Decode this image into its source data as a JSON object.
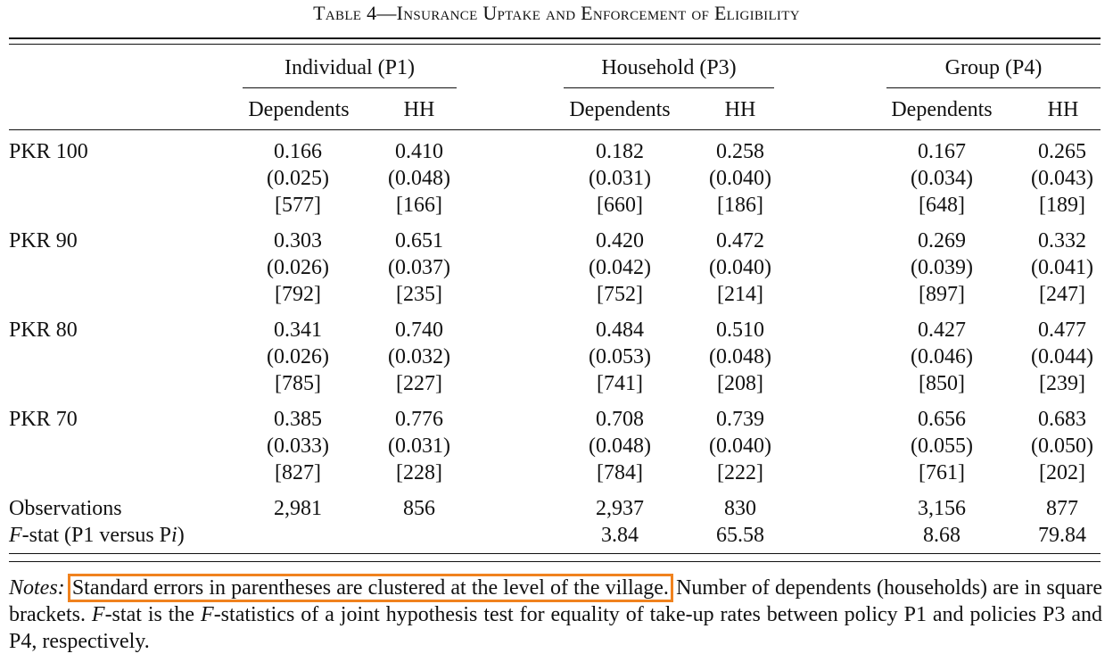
{
  "title": "Table 4—Insurance Uptake and Enforcement of Eligibility",
  "groups": [
    "Individual (P1)",
    "Household (P3)",
    "Group (P4)"
  ],
  "subheaders": [
    "Dependents",
    "HH"
  ],
  "rows": [
    {
      "label": "PKR 100",
      "est": [
        "0.166",
        "0.410",
        "0.182",
        "0.258",
        "0.167",
        "0.265"
      ],
      "se": [
        "(0.025)",
        "(0.048)",
        "(0.031)",
        "(0.040)",
        "(0.034)",
        "(0.043)"
      ],
      "n": [
        "[577]",
        "[166]",
        "[660]",
        "[186]",
        "[648]",
        "[189]"
      ]
    },
    {
      "label": "PKR 90",
      "est": [
        "0.303",
        "0.651",
        "0.420",
        "0.472",
        "0.269",
        "0.332"
      ],
      "se": [
        "(0.026)",
        "(0.037)",
        "(0.042)",
        "(0.040)",
        "(0.039)",
        "(0.041)"
      ],
      "n": [
        "[792]",
        "[235]",
        "[752]",
        "[214]",
        "[897]",
        "[247]"
      ]
    },
    {
      "label": "PKR 80",
      "est": [
        "0.341",
        "0.740",
        "0.484",
        "0.510",
        "0.427",
        "0.477"
      ],
      "se": [
        "(0.026)",
        "(0.032)",
        "(0.053)",
        "(0.048)",
        "(0.046)",
        "(0.044)"
      ],
      "n": [
        "[785]",
        "[227]",
        "[741]",
        "[208]",
        "[850]",
        "[239]"
      ]
    },
    {
      "label": "PKR 70",
      "est": [
        "0.385",
        "0.776",
        "0.708",
        "0.739",
        "0.656",
        "0.683"
      ],
      "se": [
        "(0.033)",
        "(0.031)",
        "(0.048)",
        "(0.040)",
        "(0.055)",
        "(0.050)"
      ],
      "n": [
        "[827]",
        "[228]",
        "[784]",
        "[222]",
        "[761]",
        "[202]"
      ]
    }
  ],
  "observations": {
    "label": "Observations",
    "values": [
      "2,981",
      "856",
      "2,937",
      "830",
      "3,156",
      "877"
    ]
  },
  "fstat": {
    "label_prefix": "F",
    "label_rest": "-stat (P1 versus P",
    "label_i": "i",
    "label_close": ")",
    "values": [
      "",
      "",
      "3.84",
      "65.58",
      "8.68",
      "79.84"
    ]
  },
  "notes": {
    "label": "Notes:",
    "highlighted": "Standard errors in parentheses are clustered at the level of the village.",
    "rest_1": " Number of dependents (households) are in square brackets. ",
    "f1": "F",
    "rest_2": "-stat is the ",
    "f2": "F",
    "rest_3": "-statistics of a joint hypothesis test for equality of take-up rates between policy P1 and policies P3 and P4, respectively."
  },
  "highlight_color": "#f0821e"
}
